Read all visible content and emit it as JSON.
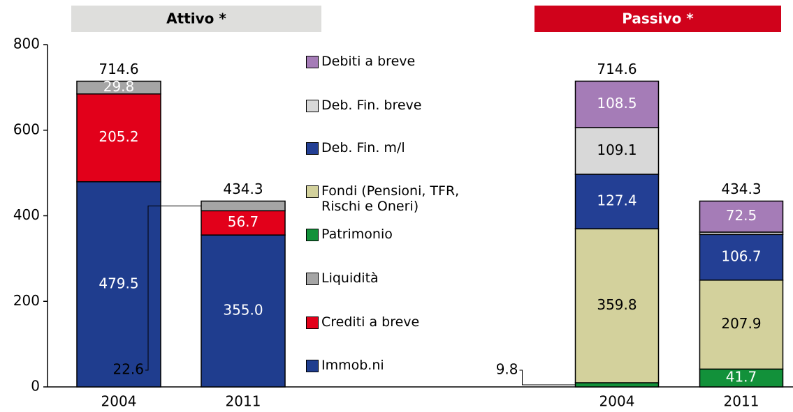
{
  "chart_data": [
    {
      "type": "bar",
      "stacked": true,
      "title": "Attivo *",
      "categories": [
        "2004",
        "2011"
      ],
      "ylim": [
        0,
        800
      ],
      "yticks": [
        0,
        200,
        400,
        600,
        800
      ],
      "totals": [
        714.6,
        434.3
      ],
      "series": [
        {
          "name": "Immob.ni",
          "color": "#1f3d8e",
          "values": [
            479.5,
            355.0
          ],
          "value_labels": [
            "479.5",
            "355.0"
          ]
        },
        {
          "name": "Crediti a breve",
          "color": "#e2001a",
          "values": [
            205.2,
            56.7
          ],
          "value_labels": [
            "205.2",
            "56.7"
          ]
        },
        {
          "name": "Liquidità",
          "color": "#a5a5a5",
          "values": [
            29.8,
            22.6
          ],
          "value_labels": [
            "29.8",
            "22.6"
          ]
        }
      ]
    },
    {
      "type": "bar",
      "stacked": true,
      "title": "Passivo *",
      "categories": [
        "2004",
        "2011"
      ],
      "ylim": [
        0,
        800
      ],
      "totals": [
        714.6,
        434.3
      ],
      "series": [
        {
          "name": "Patrimonio",
          "color": "#12913a",
          "values": [
            9.8,
            41.7
          ],
          "value_labels": [
            "9.8",
            "41.7"
          ]
        },
        {
          "name": "Fondi (Pensioni, TFR, Rischi e Oneri)",
          "color": "#d3d19c",
          "values": [
            359.8,
            207.9
          ],
          "value_labels": [
            "359.8",
            "207.9"
          ]
        },
        {
          "name": "Deb. Fin. m/l",
          "color": "#233f94",
          "values": [
            127.4,
            106.7
          ],
          "value_labels": [
            "127.4",
            "106.7"
          ]
        },
        {
          "name": "Deb. Fin. breve",
          "color": "#d8d8d8",
          "values": [
            109.1,
            5.5
          ],
          "value_labels": [
            "109.1",
            null
          ]
        },
        {
          "name": "Debiti a breve",
          "color": "#a57cb7",
          "values": [
            108.5,
            72.5
          ],
          "value_labels": [
            "108.5",
            "72.5"
          ]
        }
      ]
    }
  ]
}
